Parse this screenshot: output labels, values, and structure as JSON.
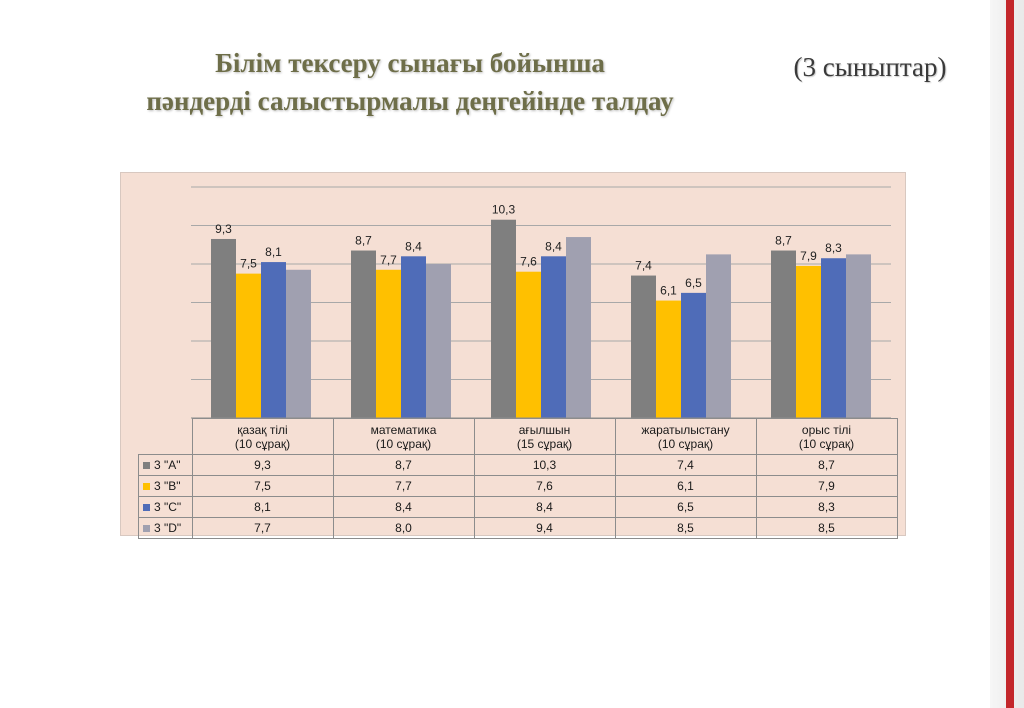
{
  "title_line1": "Білім тексеру сынағы бойынша",
  "title_line2": "пәндерді салыстырмалы деңгейінде талдау",
  "subtitle": "(3 сыныптар)",
  "colors": {
    "title": "#6e6e49",
    "series": [
      "#7f7f7f",
      "#ffc000",
      "#4f6cb8",
      "#a0a0b0"
    ],
    "chart_bg": "#f5dfd4",
    "accent_red": "#c3272b"
  },
  "chart_data": {
    "type": "bar",
    "categories": [
      [
        "қазақ тілі",
        "(10 сұрақ)"
      ],
      [
        "математика",
        "(10 сұрақ)"
      ],
      [
        "ағылшын",
        "(15 сұрақ)"
      ],
      [
        "жаратылыстану",
        "(10 сұрақ)"
      ],
      [
        "орыс тілі",
        "(10 сұрақ)"
      ]
    ],
    "series": [
      {
        "name": "3 \"А\"",
        "values": [
          9.3,
          8.7,
          10.3,
          7.4,
          8.7
        ],
        "labels": [
          "9,3",
          "8,7",
          "10,3",
          "7,4",
          "8,7"
        ],
        "show_data_labels": true
      },
      {
        "name": "3 \"В\"",
        "values": [
          7.5,
          7.7,
          7.6,
          6.1,
          7.9
        ],
        "labels": [
          "7,5",
          "7,7",
          "7,6",
          "6,1",
          "7,9"
        ],
        "show_data_labels": true
      },
      {
        "name": "3 \"С\"",
        "values": [
          8.1,
          8.4,
          8.4,
          6.5,
          8.3
        ],
        "labels": [
          "8,1",
          "8,4",
          "8,4",
          "6,5",
          "8,3"
        ],
        "show_data_labels": true
      },
      {
        "name": "3 \"D\"",
        "values": [
          7.7,
          8.0,
          9.4,
          8.5,
          8.5
        ],
        "labels": [
          "7,7",
          "8,0",
          "9,4",
          "8,5",
          "8,5"
        ],
        "show_data_labels": false
      }
    ],
    "ylim": [
      0,
      12
    ],
    "grid": true,
    "data_table": true,
    "legend": "data-table-row-keys"
  }
}
